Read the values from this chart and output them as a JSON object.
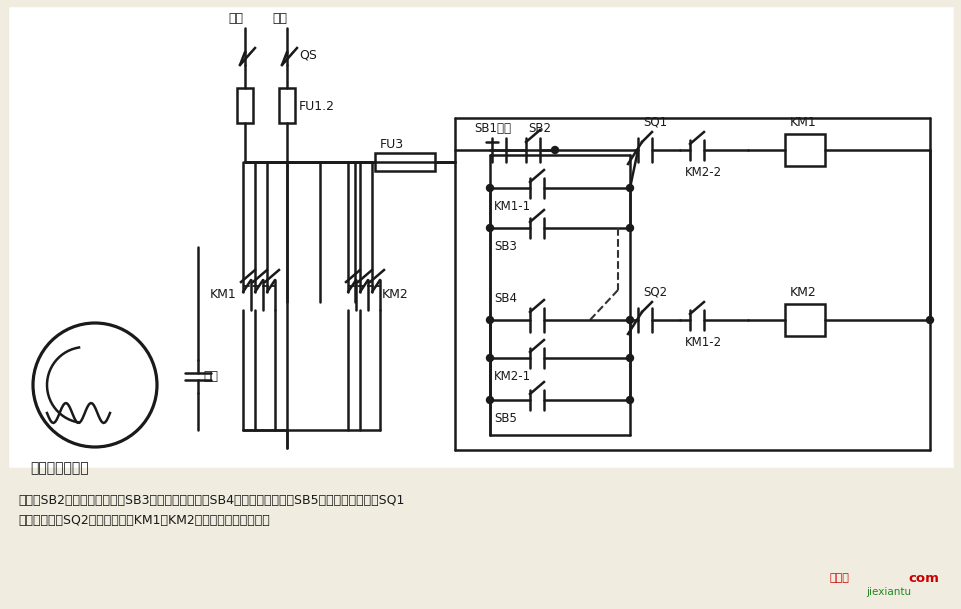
{
  "bg_color": "#f0ede0",
  "line_color": "#1a1a1a",
  "text_color": "#1a1a1a",
  "title_text": "单相电容电动机",
  "desc_line1": "说明：SB2为上升启动按鈕，SB3为上升点动按鈕，SB4为下降启动按鈕，SB5为下降点动按鈕；SQ1",
  "desc_line2": "为最高限位，SQ2为最低限位。KM1、KM2可用中间继电器代替。",
  "label_huoxian": "火线",
  "label_lingxian": "零线",
  "label_QS": "QS",
  "label_FU12": "FU1.2",
  "label_FU3": "FU3",
  "label_KM1": "KM1",
  "label_KM2": "KM2",
  "label_capacitor": "电容",
  "label_SB1": "SB1停止",
  "label_SB2": "SB2",
  "label_SB3": "SB3",
  "label_SB4": "SB4",
  "label_SB5": "SB5",
  "label_SQ1": "SQ1",
  "label_SQ2": "SQ2",
  "label_KM11": "KM1-1",
  "label_KM21": "KM2-1",
  "label_KM12": "KM1-2",
  "label_KM22": "KM2-2",
  "label_KM1coil": "KM1",
  "label_KM2coil": "KM2",
  "watermark_red": "接线图",
  "watermark_green": "jiexiantu",
  "watermark_com": "com"
}
